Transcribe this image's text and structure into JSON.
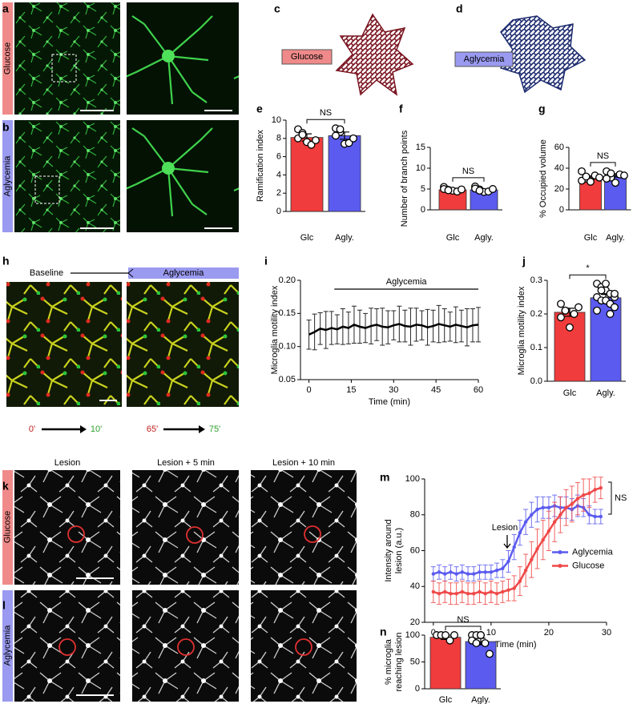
{
  "figure": {
    "panel_letters": [
      "a",
      "b",
      "c",
      "d",
      "e",
      "f",
      "g",
      "h",
      "i",
      "j",
      "k",
      "l",
      "m",
      "n"
    ],
    "conditions": [
      "Glucose",
      "Aglycemia"
    ],
    "h_labels": [
      "Baseline",
      "0'",
      "10'",
      "65'",
      "75'"
    ],
    "k_labels": [
      "Lesion",
      "Lesion + 5 min",
      "Lesion + 10 min"
    ]
  },
  "chart_data": [
    {
      "type": "bar",
      "ylabel": "Ramification index",
      "categories": [
        "Glc",
        "Agly."
      ],
      "values": [
        8.1,
        8.3
      ],
      "errors": [
        0.4,
        0.4
      ],
      "colors": [
        "#f03c3c",
        "#5b5bf0"
      ],
      "points": [
        [
          9.0,
          8.6,
          7.6,
          7.3,
          7.8,
          8.0,
          8.4
        ],
        [
          9.1,
          8.7,
          7.4,
          7.5,
          8.0,
          8.3,
          9.0
        ]
      ],
      "ylim": [
        0,
        10
      ],
      "yticks": [
        0,
        2,
        4,
        6,
        8,
        10
      ],
      "annotation": "NS"
    },
    {
      "type": "bar",
      "ylabel": "Number of branch points",
      "categories": [
        "Glc",
        "Agly."
      ],
      "values": [
        4.8,
        4.8
      ],
      "errors": [
        0.2,
        0.2
      ],
      "colors": [
        "#f03c3c",
        "#5b5bf0"
      ],
      "points": [
        [
          5.5,
          4.8,
          4.6,
          4.4,
          4.9,
          5.0,
          4.7
        ],
        [
          5.6,
          4.9,
          4.3,
          4.4,
          5.0,
          5.1,
          4.6
        ]
      ],
      "ylim": [
        0,
        15
      ],
      "yticks": [
        0,
        5,
        10,
        15
      ],
      "annotation": "NS"
    },
    {
      "type": "bar",
      "ylabel": "% Occupied volume",
      "categories": [
        "Glc",
        "Agly."
      ],
      "values": [
        31,
        33
      ],
      "errors": [
        1.5,
        1.6
      ],
      "colors": [
        "#f03c3c",
        "#5b5bf0"
      ],
      "points": [
        [
          37,
          30,
          27,
          33,
          31,
          28,
          32
        ],
        [
          37,
          31,
          26,
          34,
          33,
          30,
          35
        ]
      ],
      "ylim": [
        0,
        60
      ],
      "yticks": [
        0,
        20,
        40,
        60
      ],
      "annotation": "NS"
    },
    {
      "type": "line",
      "xlabel": "Time (min)",
      "ylabel": "Microglia motility index",
      "xlim": [
        -3,
        60
      ],
      "xticks": [
        0,
        15,
        30,
        45,
        60
      ],
      "ylim": [
        0.05,
        0.2
      ],
      "yticks": [
        0.05,
        {
          "value": 0.1,
          "label": "0.10"
        },
        0.15,
        {
          "value": 0.2,
          "label": "0.20"
        }
      ],
      "x": [
        0,
        2,
        4,
        6,
        8,
        10,
        12,
        14,
        16,
        18,
        20,
        22,
        24,
        26,
        28,
        30,
        32,
        34,
        36,
        38,
        40,
        42,
        44,
        46,
        48,
        50,
        52,
        54,
        56,
        58,
        60
      ],
      "series": [
        {
          "color": "#000000",
          "values": [
            0.118,
            0.122,
            0.127,
            0.125,
            0.128,
            0.126,
            0.13,
            0.128,
            0.133,
            0.13,
            0.128,
            0.131,
            0.133,
            0.13,
            0.129,
            0.132,
            0.134,
            0.131,
            0.13,
            0.133,
            0.132,
            0.129,
            0.131,
            0.134,
            0.132,
            0.13,
            0.133,
            0.131,
            0.129,
            0.132,
            0.133
          ],
          "errors": [
            0.022,
            0.027,
            0.024,
            0.028,
            0.025,
            0.022,
            0.027,
            0.024,
            0.028,
            0.025,
            0.022,
            0.027,
            0.024,
            0.028,
            0.025,
            0.022,
            0.027,
            0.024,
            0.028,
            0.025,
            0.022,
            0.027,
            0.024,
            0.028,
            0.025,
            0.022,
            0.027,
            0.024,
            0.028,
            0.025,
            0.026
          ]
        }
      ],
      "annotation": {
        "text": "Aglycemia",
        "x": [
          9,
          60
        ]
      }
    },
    {
      "type": "bar",
      "ylabel": "Microglia motility index",
      "categories": [
        "Glc",
        "Agly."
      ],
      "values": [
        0.205,
        0.248
      ],
      "errors": [
        0.012,
        0.01
      ],
      "colors": [
        "#f03c3c",
        "#5b5bf0"
      ],
      "points": [
        [
          0.23,
          0.21,
          0.16,
          0.2,
          0.22,
          0.19,
          0.21
        ],
        [
          0.29,
          0.28,
          0.27,
          0.26,
          0.25,
          0.25,
          0.24,
          0.24,
          0.23,
          0.22,
          0.21,
          0.27,
          0.29,
          0.2,
          0.26
        ]
      ],
      "ylim": [
        0,
        0.3
      ],
      "yticks": [
        {
          "value": 0,
          "label": "0.0"
        },
        0.1,
        0.2,
        0.3
      ],
      "annotation": "*"
    },
    {
      "type": "line",
      "xlabel": "Time (min)",
      "ylabel": [
        "Intensity around",
        "lesion (a.u.)"
      ],
      "xlim": [
        -1.5,
        30
      ],
      "xticks": [
        0,
        10,
        20,
        30
      ],
      "ylim": [
        20,
        100
      ],
      "yticks": [
        20,
        40,
        60,
        80,
        100
      ],
      "markers": true,
      "legend": "right",
      "x": [
        0,
        1,
        2,
        3,
        4,
        5,
        6,
        7,
        8,
        9,
        10,
        11,
        12,
        13,
        14,
        15,
        16,
        17,
        18,
        19,
        20,
        21,
        22,
        23,
        24,
        25,
        26,
        27,
        28,
        29
      ],
      "series": [
        {
          "name": "Aglycemia",
          "color": "#5b5bf0",
          "values": [
            47,
            48,
            47,
            48,
            47,
            48,
            47,
            47,
            48,
            48,
            48,
            49,
            50,
            54,
            62,
            70,
            76,
            80,
            83,
            84,
            84,
            85,
            84,
            84,
            83,
            85,
            84,
            80,
            79,
            79
          ],
          "errors": [
            4,
            4,
            4,
            4,
            4,
            4,
            4,
            4,
            4,
            4,
            4,
            4,
            5,
            6,
            7,
            7,
            7,
            7,
            7,
            6,
            6,
            6,
            6,
            6,
            6,
            6,
            5,
            5,
            4,
            4
          ]
        },
        {
          "name": "Glucose",
          "color": "#f04848",
          "values": [
            37,
            36,
            37,
            36,
            36,
            37,
            36,
            36,
            37,
            36,
            37,
            36,
            37,
            38,
            39,
            43,
            49,
            55,
            61,
            66,
            71,
            76,
            80,
            84,
            86,
            89,
            91,
            92,
            94,
            95
          ],
          "errors": [
            6,
            6,
            6,
            6,
            6,
            6,
            6,
            6,
            6,
            6,
            6,
            6,
            6,
            6,
            7,
            8,
            9,
            10,
            11,
            11,
            11,
            11,
            10,
            10,
            10,
            9,
            9,
            8,
            7,
            6
          ]
        }
      ],
      "annotations": [
        "Lesion",
        "NS"
      ]
    },
    {
      "type": "bar",
      "ylabel": [
        "% microglia",
        "reaching lesion"
      ],
      "categories": [
        "Glc",
        "Agly."
      ],
      "values": [
        96,
        88
      ],
      "errors": [
        4,
        6
      ],
      "colors": [
        "#f03c3c",
        "#5b5bf0"
      ],
      "points": [
        [
          100,
          100,
          100,
          90,
          100
        ],
        [
          100,
          100,
          100,
          85,
          65,
          90,
          85,
          100
        ]
      ],
      "ylim": [
        0,
        100
      ],
      "yticks": [
        0,
        50,
        100
      ],
      "annotation": "NS"
    }
  ]
}
